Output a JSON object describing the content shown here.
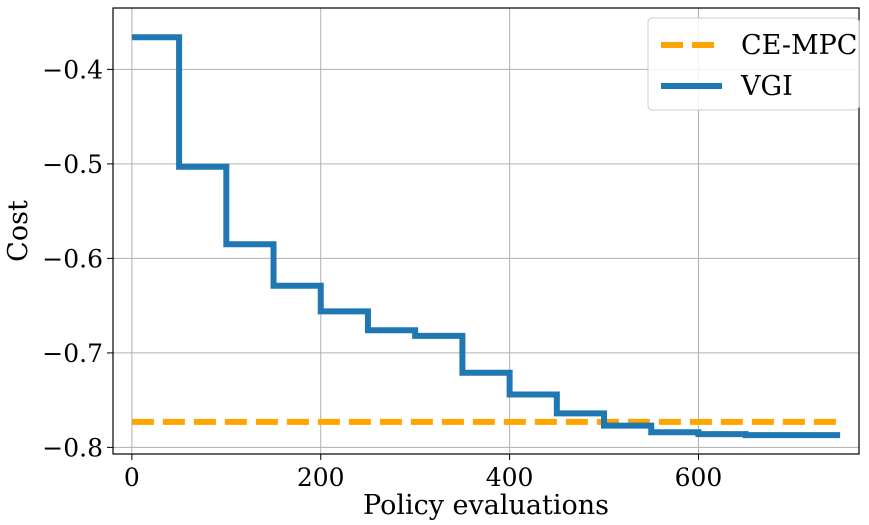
{
  "chart_data": {
    "type": "line",
    "title": "",
    "xlabel": "Policy evaluations",
    "ylabel": "Cost",
    "xlim": [
      -20,
      770
    ],
    "ylim": [
      -0.807,
      -0.335
    ],
    "xticks": [
      0,
      200,
      400,
      600
    ],
    "xtick_labels": [
      "0",
      "200",
      "400",
      "600"
    ],
    "yticks": [
      -0.4,
      -0.5,
      -0.6,
      -0.7,
      -0.8
    ],
    "ytick_labels": [
      "−0.4",
      "−0.5",
      "−0.6",
      "−0.7",
      "−0.8"
    ],
    "grid": true,
    "legend_position": "top-right",
    "series": [
      {
        "name": "CE-MPC",
        "style": "dashed",
        "color": "#FFA500",
        "x": [
          0,
          750
        ],
        "y": [
          -0.773,
          -0.773
        ]
      },
      {
        "name": "VGI",
        "style": "steps-post",
        "color": "#1F77B4",
        "x": [
          0,
          50,
          100,
          150,
          200,
          250,
          300,
          350,
          400,
          450,
          500,
          550,
          600,
          650,
          700,
          750
        ],
        "y": [
          -0.366,
          -0.503,
          -0.585,
          -0.629,
          -0.656,
          -0.676,
          -0.682,
          -0.721,
          -0.744,
          -0.764,
          -0.777,
          -0.784,
          -0.786,
          -0.787,
          -0.787,
          -0.787
        ]
      }
    ]
  }
}
